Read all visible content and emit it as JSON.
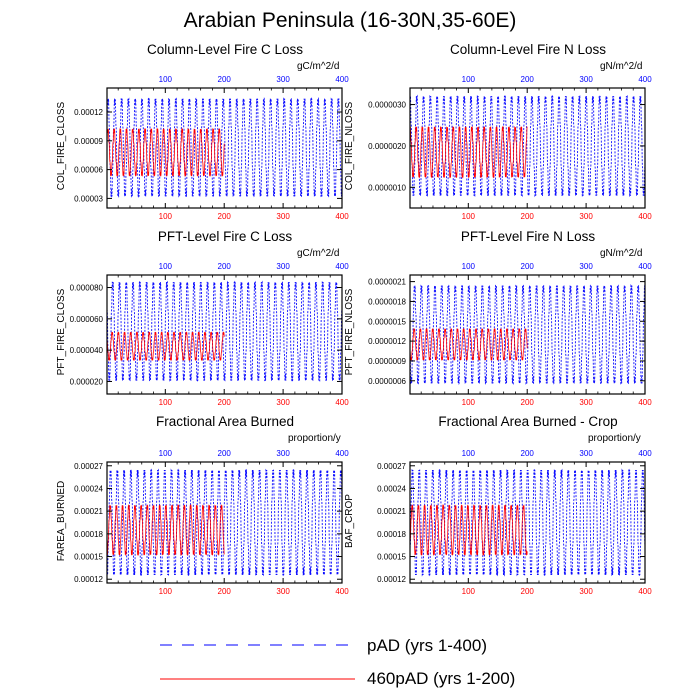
{
  "title": "Arabian Peninsula (16-30N,35-60E)",
  "colors": {
    "pad": "#0000ff",
    "pad460": "#ff0000",
    "frame": "#000000"
  },
  "legend": [
    {
      "key": "pad",
      "label": "pAD (yrs 1-400)",
      "style": "dashed"
    },
    {
      "key": "pad460",
      "label": "460pAD (yrs 1-200)",
      "style": "solid"
    }
  ],
  "chart_data": [
    {
      "type": "line",
      "title": "Column-Level Fire C Loss",
      "units": "gC/m^2/d",
      "ylabel": "COL_FIRE_CLOSS",
      "yticks": [
        "0.00003",
        "0.00006",
        "0.00009",
        "0.00012"
      ],
      "ylim": [
        2e-05,
        0.000145
      ],
      "top_axis": [
        "100",
        "200",
        "300",
        "400"
      ],
      "bottom_axis": [
        "100",
        "200",
        "300",
        "400"
      ],
      "xlim": [
        1,
        400
      ],
      "series": [
        {
          "name": "pAD (yrs 1-400)",
          "years": 400,
          "min": 2.8e-05,
          "max": 0.000138
        },
        {
          "name": "460pAD (yrs 1-200)",
          "years": 200,
          "min": 5.2e-05,
          "max": 0.000104
        }
      ]
    },
    {
      "type": "line",
      "title": "Column-Level Fire N Loss",
      "units": "gN/m^2/d",
      "ylabel": "COL_FIRE_NLOSS",
      "yticks": [
        "0.0000010",
        "0.0000020",
        "0.0000030"
      ],
      "ylim": [
        5e-07,
        3.4e-06
      ],
      "top_axis": [
        "100",
        "200",
        "300",
        "400"
      ],
      "bottom_axis": [
        "100",
        "200",
        "300",
        "400"
      ],
      "xlim": [
        1,
        400
      ],
      "series": [
        {
          "name": "pAD (yrs 1-400)",
          "years": 400,
          "min": 7e-07,
          "max": 3.3e-06
        },
        {
          "name": "460pAD (yrs 1-200)",
          "years": 200,
          "min": 1.2e-06,
          "max": 2.5e-06
        }
      ]
    },
    {
      "type": "line",
      "title": "PFT-Level Fire C Loss",
      "units": "gC/m^2/d",
      "ylabel": "PFT_FIRE_CLOSS",
      "yticks": [
        "0.000020",
        "0.000040",
        "0.000060",
        "0.000080"
      ],
      "ylim": [
        1.2e-05,
        8.8e-05
      ],
      "top_axis": [
        "100",
        "200",
        "300",
        "400"
      ],
      "bottom_axis": [
        "100",
        "200",
        "300",
        "400"
      ],
      "xlim": [
        1,
        400
      ],
      "series": [
        {
          "name": "pAD (yrs 1-400)",
          "years": 400,
          "min": 1.8e-05,
          "max": 8.6e-05
        },
        {
          "name": "460pAD (yrs 1-200)",
          "years": 200,
          "min": 3.3e-05,
          "max": 5.2e-05
        }
      ]
    },
    {
      "type": "line",
      "title": "PFT-Level Fire N Loss",
      "units": "gN/m^2/d",
      "ylabel": "PFT_FIRE_NLOSS",
      "yticks": [
        "0.0000006",
        "0.0000009",
        "0.0000012",
        "0.0000015",
        "0.0000018",
        "0.0000021"
      ],
      "ylim": [
        4e-07,
        2.2e-06
      ],
      "top_axis": [
        "100",
        "200",
        "300",
        "400"
      ],
      "bottom_axis": [
        "100",
        "200",
        "300",
        "400"
      ],
      "xlim": [
        1,
        400
      ],
      "series": [
        {
          "name": "pAD (yrs 1-400)",
          "years": 400,
          "min": 5e-07,
          "max": 2.1e-06
        },
        {
          "name": "460pAD (yrs 1-200)",
          "years": 200,
          "min": 9e-07,
          "max": 1.4e-06
        }
      ]
    },
    {
      "type": "line",
      "title": "Fractional Area Burned",
      "units": "proportion/y",
      "ylabel": "FAREA_BURNED",
      "yticks": [
        "0.00012",
        "0.00015",
        "0.00018",
        "0.00021",
        "0.00024",
        "0.00027"
      ],
      "ylim": [
        0.000115,
        0.000275
      ],
      "top_axis": [
        "100",
        "200",
        "300",
        "400"
      ],
      "bottom_axis": [
        "100",
        "200",
        "300",
        "400"
      ],
      "xlim": [
        1,
        400
      ],
      "series": [
        {
          "name": "pAD (yrs 1-400)",
          "years": 400,
          "min": 0.00012,
          "max": 0.00027
        },
        {
          "name": "460pAD (yrs 1-200)",
          "years": 200,
          "min": 0.00015,
          "max": 0.00022
        }
      ]
    },
    {
      "type": "line",
      "title": "Fractional Area Burned - Crop",
      "units": "proportion/y",
      "ylabel": "BAF_CROP",
      "yticks": [
        "0.00012",
        "0.00015",
        "0.00018",
        "0.00021",
        "0.00024",
        "0.00027"
      ],
      "ylim": [
        0.000115,
        0.000275
      ],
      "top_axis": [
        "100",
        "200",
        "300",
        "400"
      ],
      "bottom_axis": [
        "100",
        "200",
        "300",
        "400"
      ],
      "xlim": [
        1,
        400
      ],
      "series": [
        {
          "name": "pAD (yrs 1-400)",
          "years": 400,
          "min": 0.00012,
          "max": 0.00027
        },
        {
          "name": "460pAD (yrs 1-200)",
          "years": 200,
          "min": 0.00015,
          "max": 0.00022
        }
      ]
    }
  ]
}
